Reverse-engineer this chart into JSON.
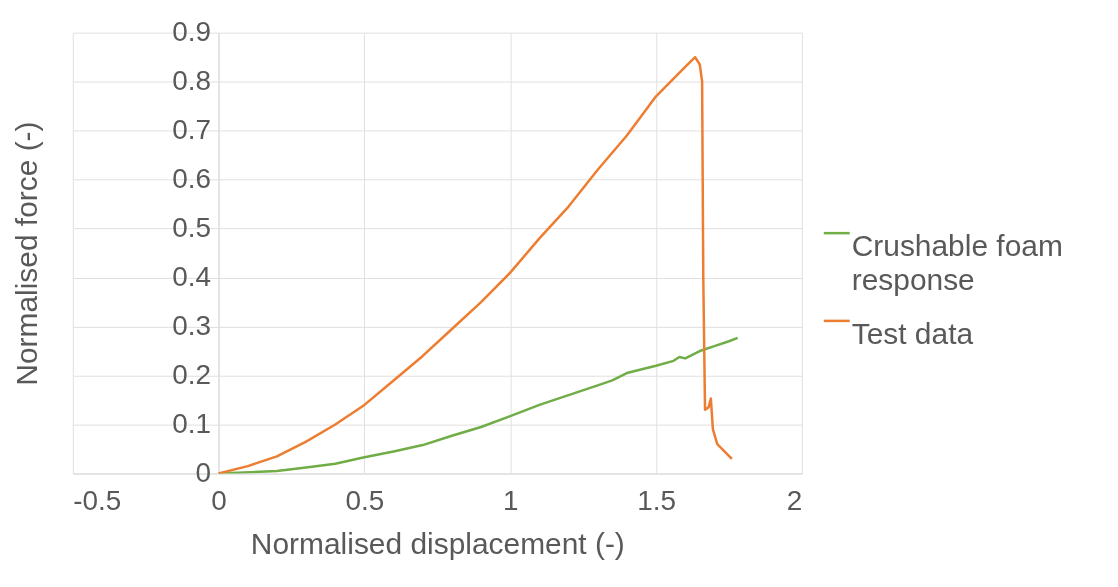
{
  "chart_data": {
    "type": "line",
    "xlabel": "Normalised displacement (-)",
    "ylabel": "Normalised force (-)",
    "xlim": [
      -0.5,
      2
    ],
    "xticks": [
      -0.5,
      0,
      0.5,
      1,
      1.5,
      2
    ],
    "ylim": [
      0,
      0.9
    ],
    "yticks": [
      0,
      0.1,
      0.2,
      0.3,
      0.4,
      0.5,
      0.6,
      0.7,
      0.8,
      0.9
    ],
    "grid": true,
    "legend": "right",
    "line_style": "solid",
    "marker": "none",
    "series": [
      {
        "name": "Crushable foam response",
        "color": "#70ad47",
        "x": [
          0,
          0.2,
          0.3,
          0.4,
          0.5,
          0.6,
          0.7,
          0.8,
          0.9,
          1.0,
          1.1,
          1.2,
          1.3,
          1.35,
          1.4,
          1.5,
          1.56,
          1.58,
          1.6,
          1.65,
          1.7,
          1.75,
          1.78
        ],
        "values": [
          0,
          0.005,
          0.012,
          0.02,
          0.033,
          0.045,
          0.058,
          0.077,
          0.095,
          0.117,
          0.14,
          0.16,
          0.18,
          0.19,
          0.205,
          0.22,
          0.23,
          0.238,
          0.235,
          0.25,
          0.26,
          0.27,
          0.277
        ]
      },
      {
        "name": "Test data",
        "color": "#ed7d31",
        "x": [
          0,
          0.1,
          0.2,
          0.3,
          0.4,
          0.5,
          0.6,
          0.7,
          0.8,
          0.9,
          1.0,
          1.1,
          1.2,
          1.3,
          1.4,
          1.5,
          1.6,
          1.634,
          1.65,
          1.658,
          1.662,
          1.668,
          1.68,
          1.688,
          1.695,
          1.71,
          1.76
        ],
        "values": [
          0,
          0.015,
          0.035,
          0.065,
          0.1,
          0.14,
          0.19,
          0.24,
          0.295,
          0.35,
          0.41,
          0.48,
          0.545,
          0.62,
          0.69,
          0.77,
          0.83,
          0.85,
          0.835,
          0.8,
          0.4,
          0.13,
          0.135,
          0.153,
          0.09,
          0.06,
          0.03
        ]
      }
    ]
  }
}
